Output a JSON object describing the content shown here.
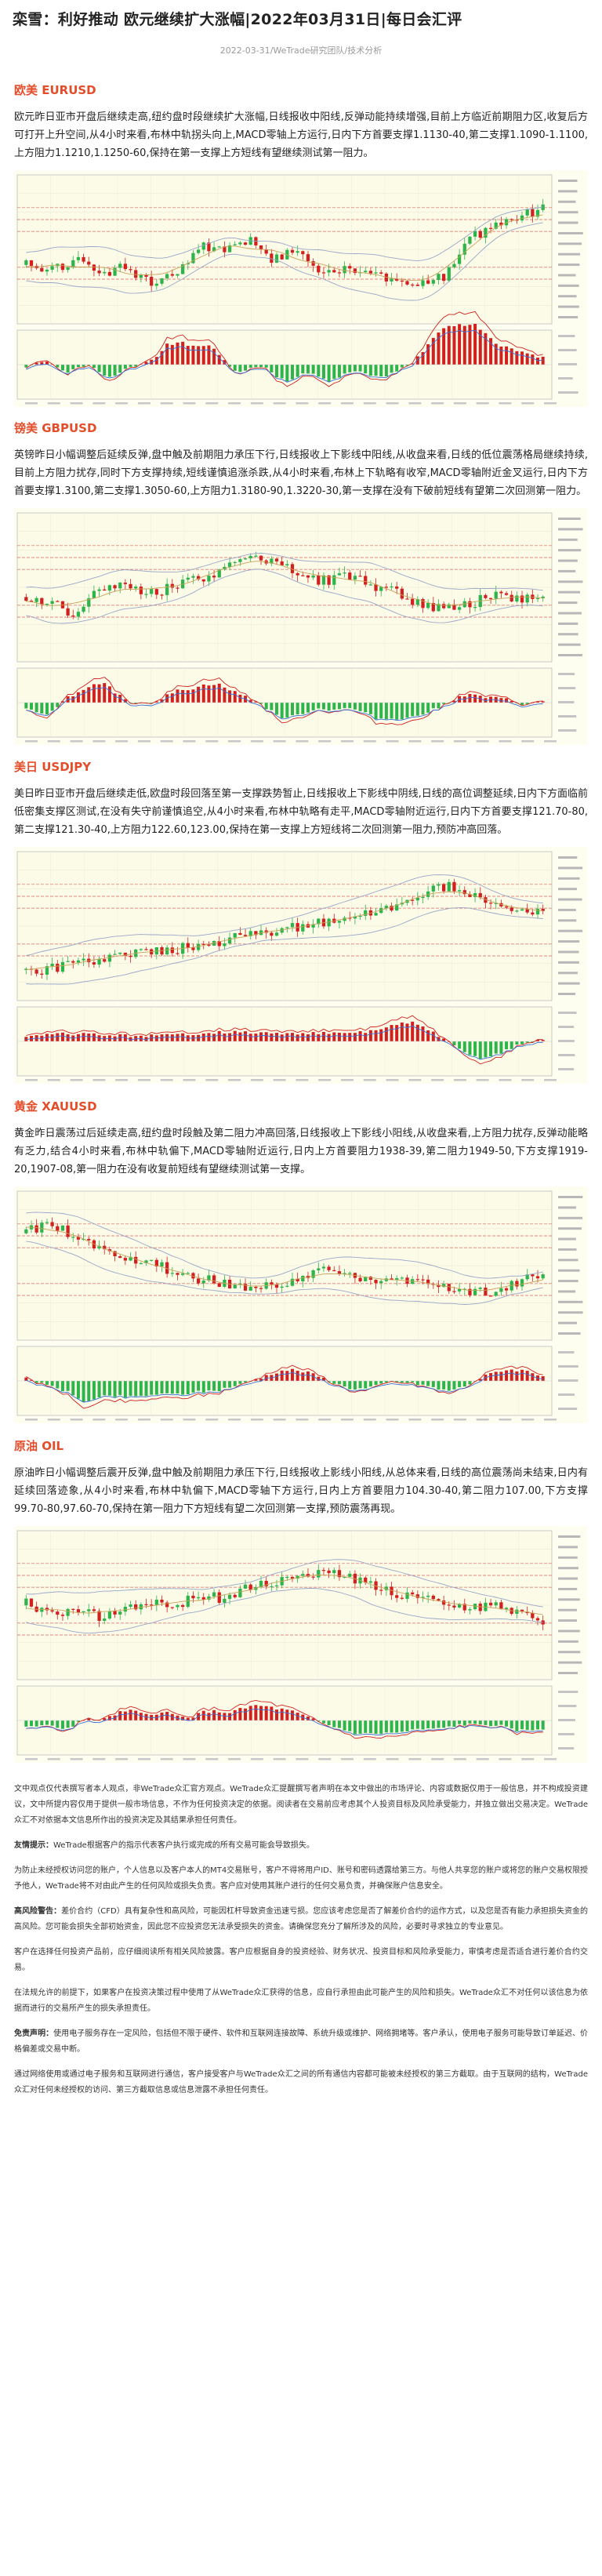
{
  "article": {
    "title": "栾雪：利好推动 欧元继续扩大涨幅|2022年03月31日|每日会汇评",
    "date": "2022-03-31",
    "source": "WeTrade研究团队/技术分析"
  },
  "sections": [
    {
      "title": "欧美 EURUSD",
      "text": "欧元昨日亚市开盘后继续走高,纽约盘时段继续扩大涨幅,日线报收中阳线,反弹动能持续增强,目前上方临近前期阻力区,收复后方可打开上升空间,从4小时来看,布林中轨拐头向上,MACD零轴上方运行,日内下方首要支撑1.1130-40,第二支撑1.1090-1.1100,上方阻力1.1210,1.1250-60,保持在第一支撑上方短线有望继续测试第一阻力。",
      "chart": {
        "trend": [
          0.4,
          0.35,
          0.45,
          0.3,
          0.38,
          0.25,
          0.33,
          0.55,
          0.5,
          0.6,
          0.45,
          0.52,
          0.35,
          0.38,
          0.3,
          0.26,
          0.22,
          0.3,
          0.62,
          0.72,
          0.8,
          0.86
        ],
        "seed": 7
      }
    },
    {
      "title": "镑美 GBPUSD",
      "text": "英镑昨日小幅调整后延续反弹,盘中触及前期阻力承压下行,日线报收上下影线中阳线,从收盘来看,日线的低位震荡格局继续持续,目前上方阻力扰存,同时下方支撑持续,短线谨慎追涨杀跌,从4小时来看,布林上下轨略有收窄,MACD零轴附近金叉运行,日内下方首要支撑1.3100,第二支撑1.3050-60,上方阻力1.3180-90,1.3220-30,第一支撑在没有下破前短线有望第二次回测第一阻力。",
      "chart": {
        "trend": [
          0.45,
          0.4,
          0.3,
          0.5,
          0.55,
          0.48,
          0.52,
          0.6,
          0.66,
          0.78,
          0.72,
          0.66,
          0.58,
          0.62,
          0.55,
          0.48,
          0.4,
          0.35,
          0.38,
          0.46,
          0.42,
          0.44
        ],
        "seed": 13
      }
    },
    {
      "title": "美日 USDJPY",
      "text": "美日昨日亚市开盘后继续走低,欧盘时段回落至第一支撑跌势暂止,日线报收上下影线中阴线,日线的高位调整延续,日内下方面临前低密集支撑区测试,在没有失守前谨慎追空,从4小时来看,布林中轨略有走平,MACD零轴附近运行,日内下方首要支撑121.70-80,第二支撑121.30-40,上方阻力122.60,123.00,保持在第一支撑上方短线将二次回测第一阻力,预防冲高回落。",
      "chart": {
        "trend": [
          0.15,
          0.18,
          0.22,
          0.25,
          0.28,
          0.3,
          0.33,
          0.36,
          0.4,
          0.45,
          0.48,
          0.52,
          0.55,
          0.6,
          0.62,
          0.68,
          0.78,
          0.86,
          0.8,
          0.7,
          0.65,
          0.68
        ],
        "seed": 21
      }
    },
    {
      "title": "黄金 XAUUSD",
      "text": "黄金昨日震荡过后延续走高,纽约盘时段触及第二阻力冲高回落,日线报收上下影线小阳线,从收盘来看,上方阻力扰存,反弹动能略有乏力,结合4小时来看,布林中轨偏下,MACD零轴附近运行,日内上方首要阻力1938-39,第二阻力1949-50,下方支撑1919-20,1907-08,第一阻力在没有收复前短线有望继续测试第一支撑。",
      "chart": {
        "trend": [
          0.8,
          0.88,
          0.75,
          0.7,
          0.6,
          0.55,
          0.48,
          0.42,
          0.38,
          0.34,
          0.36,
          0.42,
          0.48,
          0.46,
          0.4,
          0.38,
          0.42,
          0.36,
          0.3,
          0.32,
          0.4,
          0.44
        ],
        "seed": 31
      }
    },
    {
      "title": "原油 OIL",
      "text": "原油昨日小幅调整后震开反弹,盘中触及前期阻力承压下行,日线报收上影线小阳线,从总体来看,日线的高位震荡尚未结束,日内有延续回落迹象,从4小时来看,布林中轨偏下,MACD零轴下方运行,日内上方首要阻力104.30-40,第二阻力107.00,下方支撑99.70-80,97.60-70,保持在第一阻力下方短线有望二次回测第一支撑,预防震荡再现。",
      "chart": {
        "trend": [
          0.55,
          0.45,
          0.5,
          0.42,
          0.48,
          0.55,
          0.52,
          0.6,
          0.58,
          0.66,
          0.72,
          0.78,
          0.8,
          0.75,
          0.7,
          0.62,
          0.58,
          0.55,
          0.5,
          0.52,
          0.48,
          0.4
        ],
        "seed": 41
      }
    }
  ],
  "disclaimer": [
    {
      "bold": "",
      "text": "文中观点仅代表撰写者本人观点，非WeTrade众汇官方观点。WeTrade众汇提醒撰写者声明在本文中做出的市场评论、内容或数据仅用于一般信息，并不构成投资建议，文中所提内容仅用于提供一般市场信息，不作为任何投资决定的依据。阅读者在交易前应考虑其个人投资目标及风险承受能力，并独立做出交易决定。WeTrade众汇不对依据本文信息所作出的投资决定及其结果承担任何责任。"
    },
    {
      "bold": "友情提示：",
      "text": "WeTrade根据客户的指示代表客户执行或完成的所有交易可能会导致损失。"
    },
    {
      "bold": "",
      "text": "为防止未经授权访问您的账户，个人信息以及客户本人的MT4交易账号，客户不得将用户ID、账号和密码透露给第三方。与他人共享您的账户或将您的账户交易权限授予他人，WeTrade将不对由此产生的任何风险或损失负责。客户应对使用其账户进行的任何交易负责，并确保账户信息安全。"
    },
    {
      "bold": "高风险警告：",
      "text": "差价合约（CFD）具有复杂性和高风险，可能因杠杆导致资金迅速亏损。您应该考虑您是否了解差价合约的运作方式，以及您是否有能力承担损失资金的高风险。您可能会损失全部初始资金，因此您不应投资您无法承受损失的资金。请确保您充分了解所涉及的风险，必要时寻求独立的专业意见。"
    },
    {
      "bold": "",
      "text": "客户在选择任何投资产品前，应仔细阅读所有相关风险披露。客户应根据自身的投资经验、财务状况、投资目标和风险承受能力，审慎考虑是否适合进行差价合约交易。"
    },
    {
      "bold": "",
      "text": "在法规允许的前提下，如果客户在投资决策过程中使用了从WeTrade众汇获得的信息，应自行承担由此可能产生的风险和损失。WeTrade众汇不对任何以该信息为依据而进行的交易所产生的损失承担责任。"
    },
    {
      "bold": "免责声明：",
      "text": "使用电子服务存在一定风险，包括但不限于硬件、软件和互联网连接故障、系统升级或维护、网络拥堵等。客户承认，使用电子服务可能导致订单延迟、价格偏差或交易中断。"
    },
    {
      "bold": "",
      "text": "通过网络使用或通过电子服务和互联网进行通信，客户接受客户与WeTrade众汇之间的所有通信内容都可能被未经授权的第三方截取。由于互联网的结构，WeTrade众汇对任何未经授权的访问、第三方截取信息或信息泄露不承担任何责任。"
    }
  ]
}
